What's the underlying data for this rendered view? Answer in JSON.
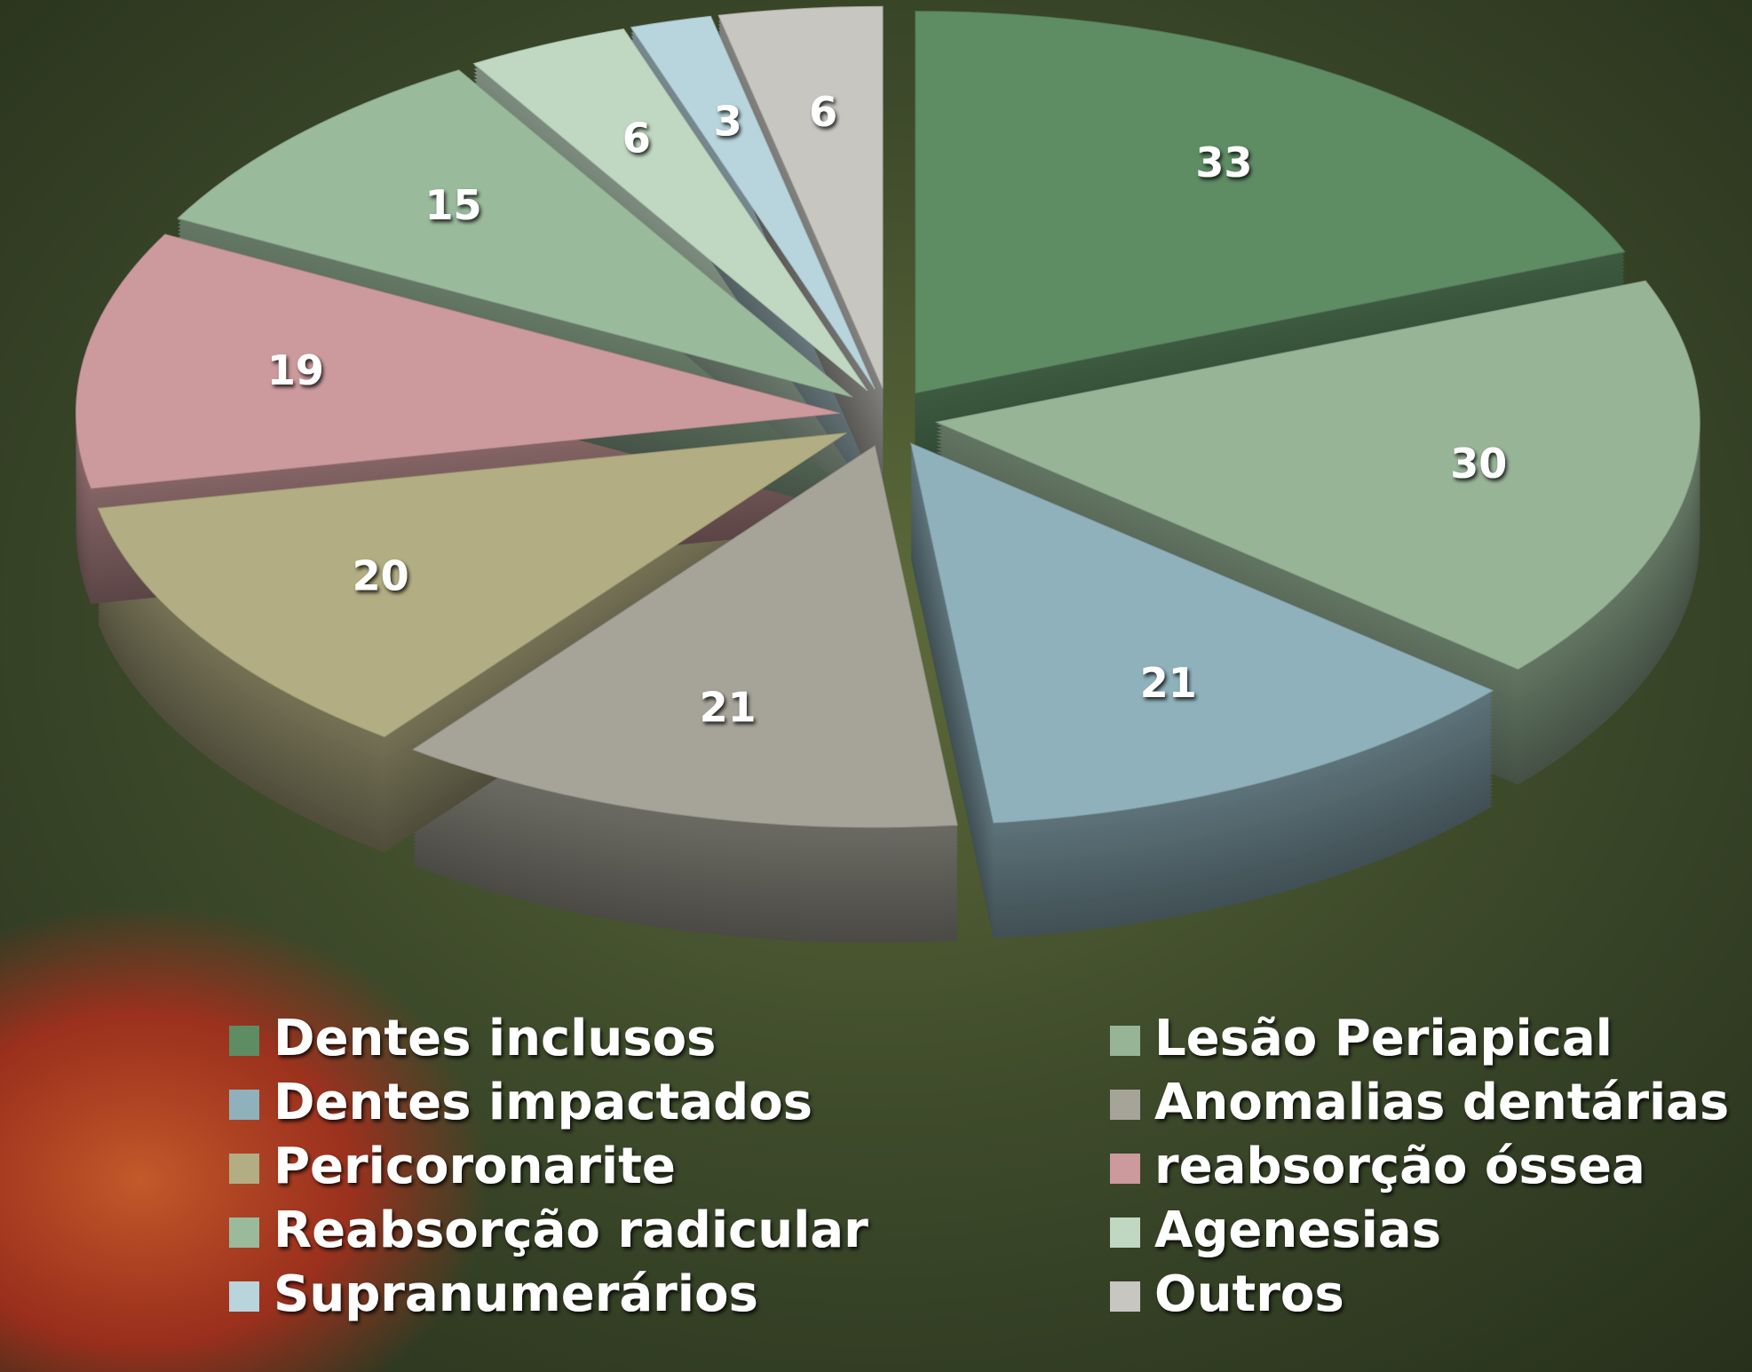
{
  "chart_data": {
    "type": "pie3d",
    "categories": [
      "Dentes inclusos",
      "Lesão Periapical",
      "Dentes impactados",
      "Anomalias dentárias",
      "Pericoronarite",
      "reabsorção óssea",
      "Reabsorção radicular",
      "Agenesias",
      "Supranumerários",
      "Outros"
    ],
    "values": [
      33,
      30,
      21,
      21,
      20,
      19,
      15,
      6,
      3,
      6
    ],
    "colors": [
      "#5e8c63",
      "#98b497",
      "#8fb1bb",
      "#a6a498",
      "#b2ad82",
      "#cc9a9c",
      "#9aba9c",
      "#c0d8c2",
      "#b8d4dc",
      "#c8c6c0"
    ],
    "legend": "bottom"
  }
}
